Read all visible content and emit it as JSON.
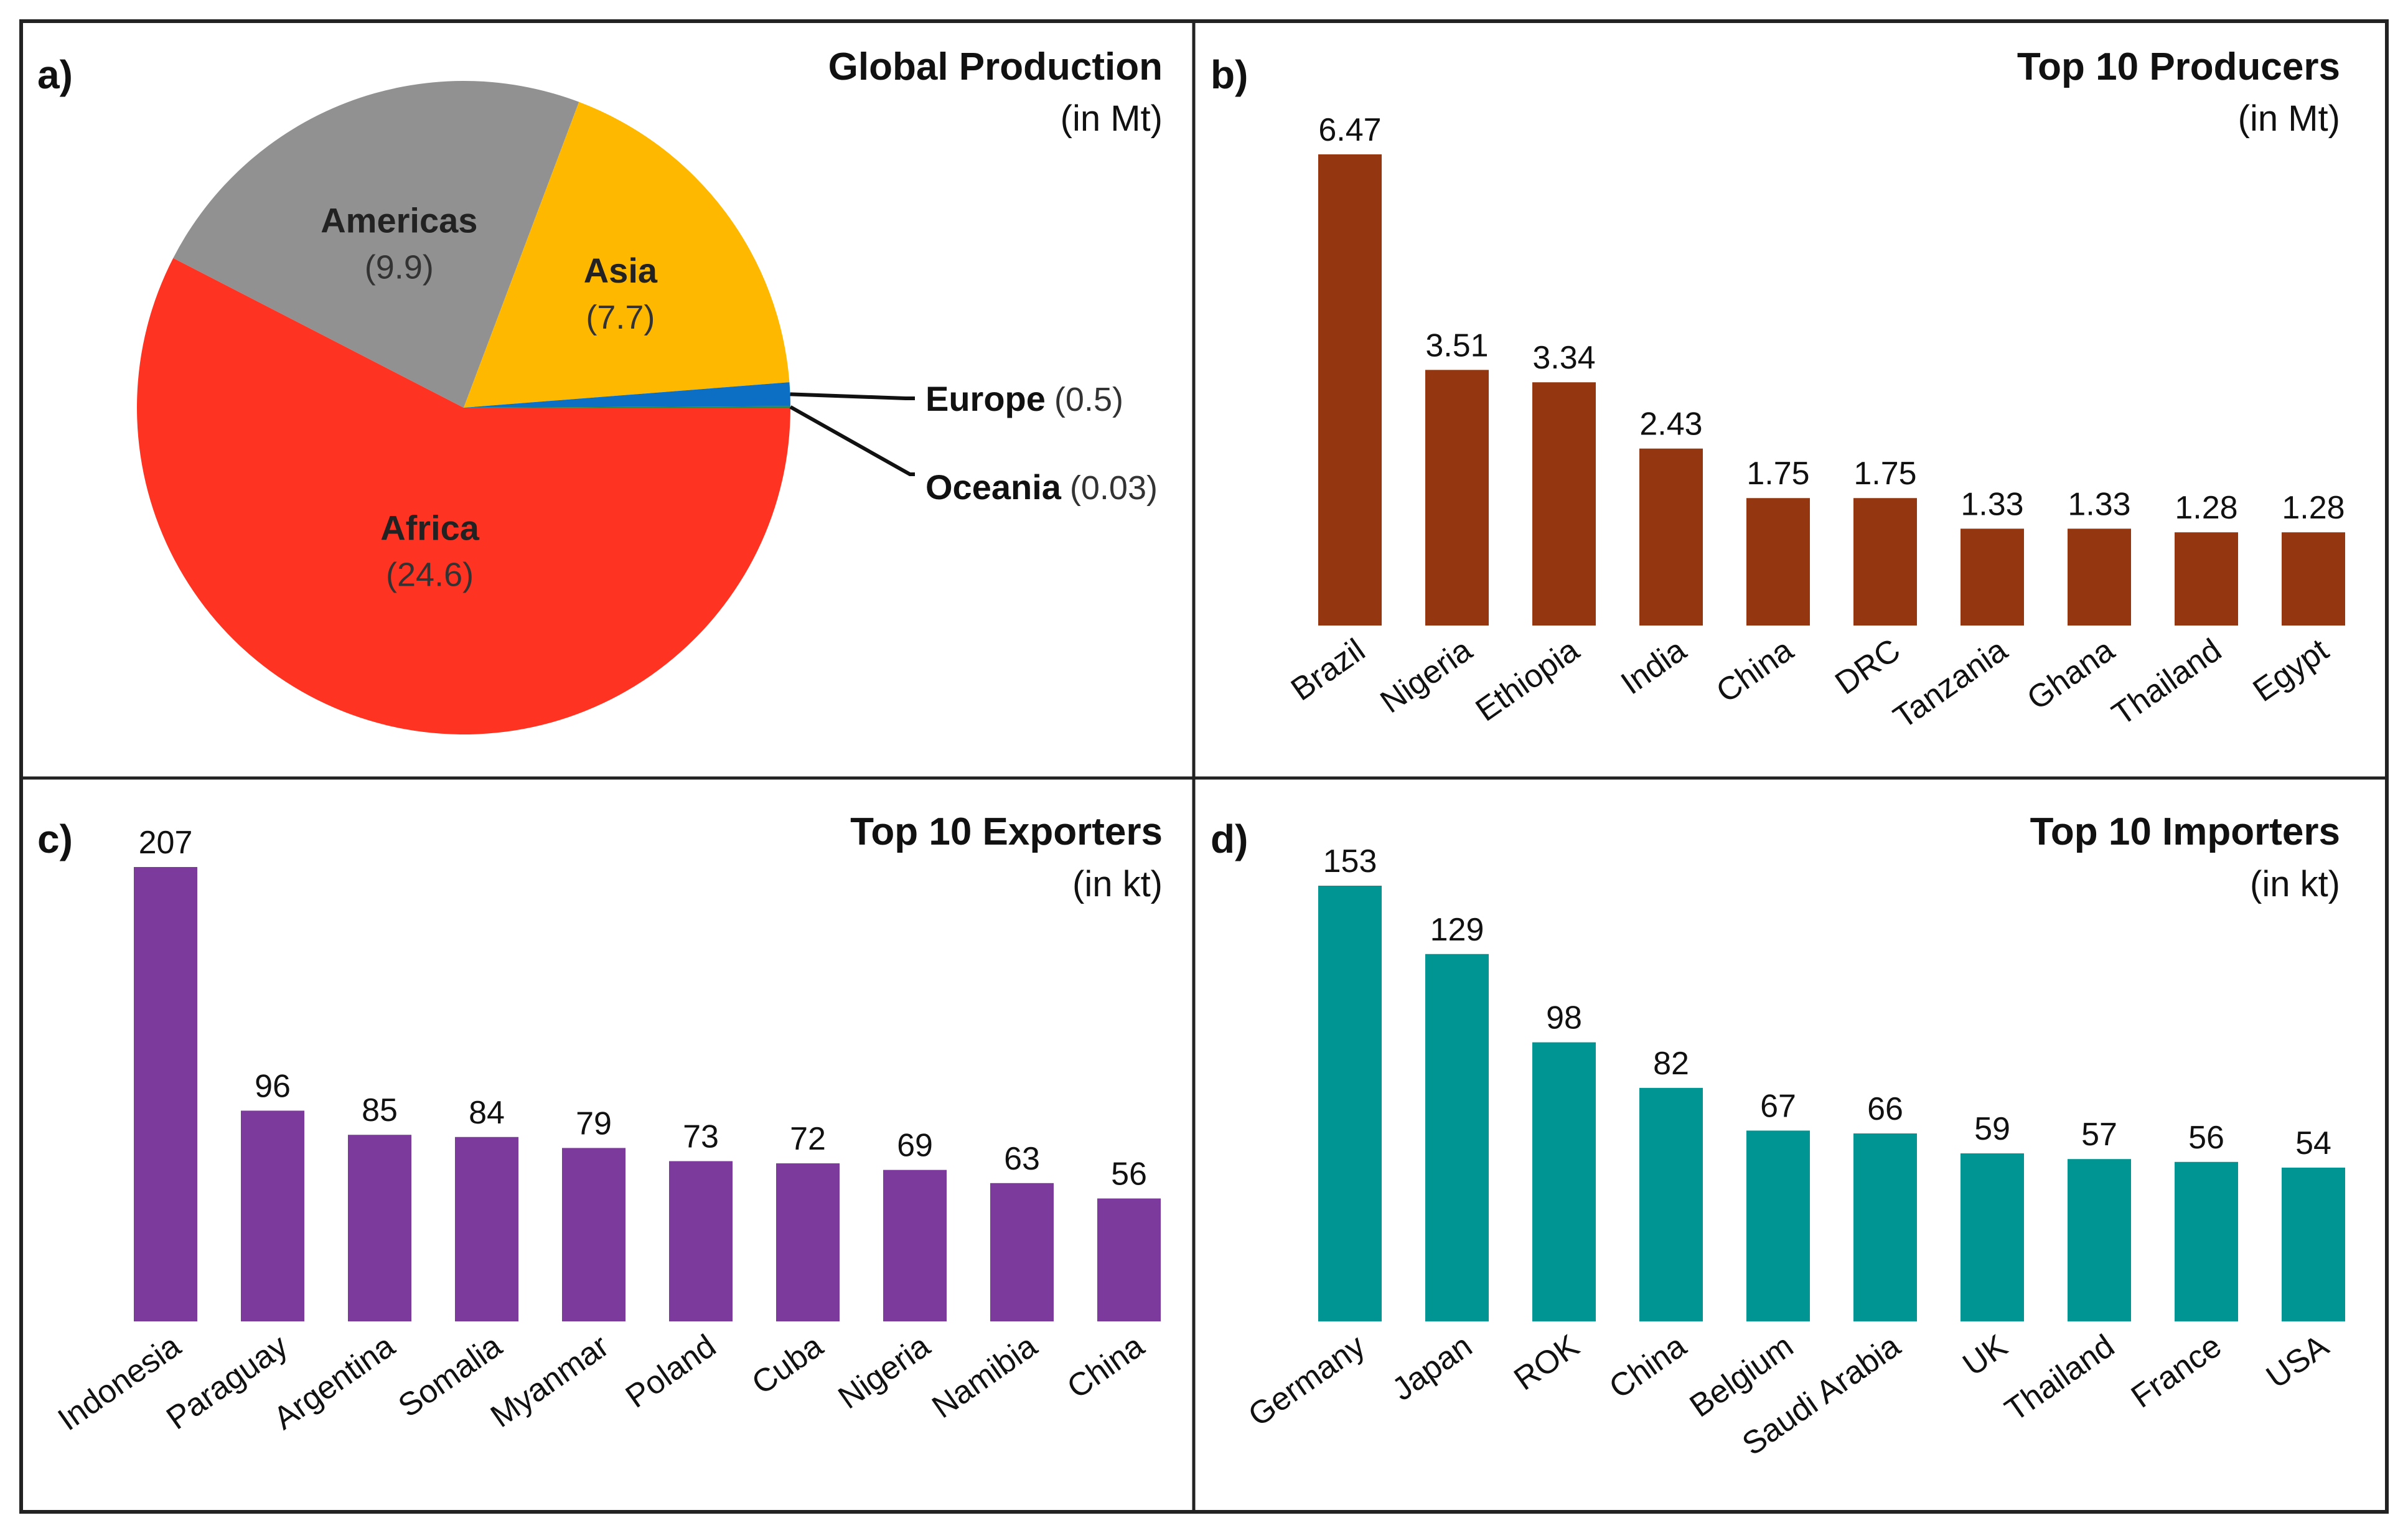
{
  "colors": {
    "producers": "#943710",
    "exporters": "#7b3a9c",
    "importers": "#009592",
    "africa": "#ff3322",
    "americas": "#919191",
    "asia": "#ffb800",
    "europe": "#0c6fc3",
    "oceania": "#2a8a3a",
    "frame": "#222222"
  },
  "chart_data": [
    {
      "id": "pie",
      "panel_label": "a)",
      "type": "pie",
      "title": "Global Production",
      "unit": "(in Mt)",
      "slices": [
        {
          "name": "Africa",
          "value": 24.6,
          "display": "(24.6)",
          "color_key": "africa"
        },
        {
          "name": "Americas",
          "value": 9.9,
          "display": "(9.9)",
          "color_key": "americas"
        },
        {
          "name": "Asia",
          "value": 7.7,
          "display": "(7.7)",
          "color_key": "asia"
        },
        {
          "name": "Europe",
          "value": 0.5,
          "display": "(0.5)",
          "color_key": "europe"
        },
        {
          "name": "Oceania",
          "value": 0.03,
          "display": "(0.03)",
          "color_key": "oceania"
        }
      ]
    },
    {
      "id": "producers",
      "panel_label": "b)",
      "type": "bar",
      "title": "Top 10 Producers",
      "unit": "(in Mt)",
      "color_key": "producers",
      "categories": [
        "Brazil",
        "Nigeria",
        "Ethiopia",
        "India",
        "China",
        "DRC",
        "Tanzania",
        "Ghana",
        "Thailand",
        "Egypt"
      ],
      "values": [
        6.47,
        3.51,
        3.34,
        2.43,
        1.75,
        1.75,
        1.33,
        1.33,
        1.28,
        1.28
      ],
      "value_labels": [
        "6.47",
        "3.51",
        "3.34",
        "2.43",
        "1.75",
        "1.75",
        "1.33",
        "1.33",
        "1.28",
        "1.28"
      ]
    },
    {
      "id": "exporters",
      "panel_label": "c)",
      "type": "bar",
      "title": "Top 10 Exporters",
      "unit": "(in kt)",
      "color_key": "exporters",
      "categories": [
        "Indonesia",
        "Paraguay",
        "Argentina",
        "Somalia",
        "Myanmar",
        "Poland",
        "Cuba",
        "Nigeria",
        "Namibia",
        "China"
      ],
      "values": [
        207,
        96,
        85,
        84,
        79,
        73,
        72,
        69,
        63,
        56
      ],
      "value_labels": [
        "207",
        "96",
        "85",
        "84",
        "79",
        "73",
        "72",
        "69",
        "63",
        "56"
      ]
    },
    {
      "id": "importers",
      "panel_label": "d)",
      "type": "bar",
      "title": "Top 10 Importers",
      "unit": "(in kt)",
      "color_key": "importers",
      "categories": [
        "Germany",
        "Japan",
        "ROK",
        "China",
        "Belgium",
        "Saudi Arabia",
        "UK",
        "Thailand",
        "France",
        "USA"
      ],
      "values": [
        153,
        129,
        98,
        82,
        67,
        66,
        59,
        57,
        56,
        54
      ],
      "value_labels": [
        "153",
        "129",
        "98",
        "82",
        "67",
        "66",
        "59",
        "57",
        "56",
        "54"
      ]
    }
  ]
}
